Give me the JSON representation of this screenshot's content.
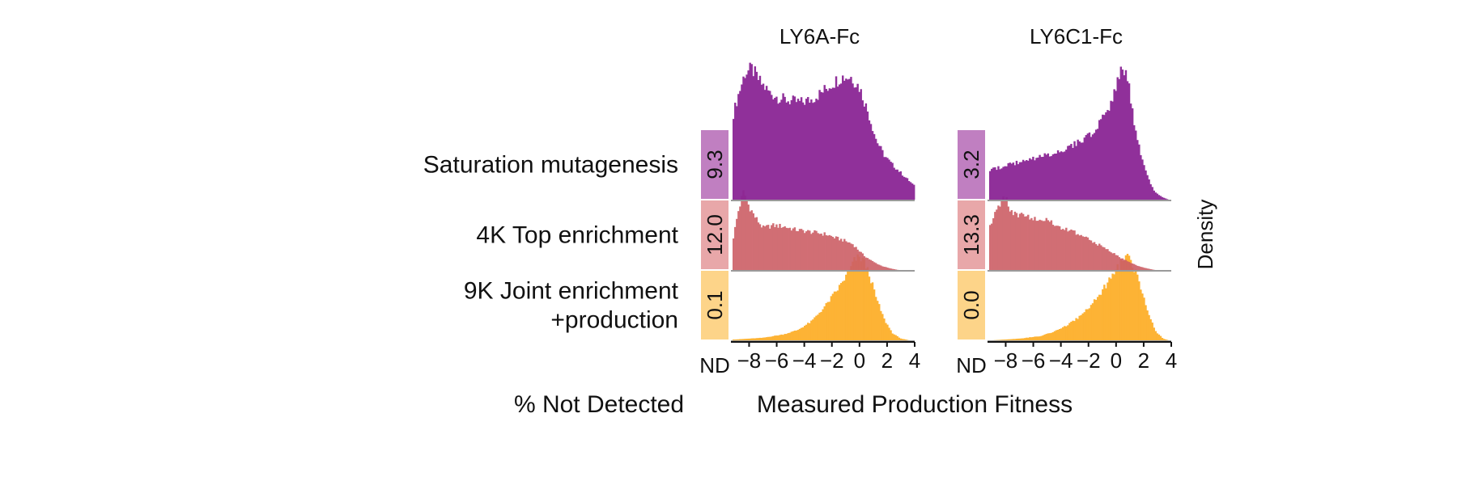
{
  "chart_data": {
    "type": "histogram",
    "x_axis_label": "Measured Production Fitness",
    "y_axis_label": "Density",
    "nd_axis_label": "% Not Detected",
    "nd_tick_label": "ND",
    "x_ticks": [
      -8,
      -6,
      -4,
      -2,
      0,
      2,
      4
    ],
    "x_tick_labels": [
      "−8",
      "−6",
      "−4",
      "−2",
      "0",
      "2",
      "4"
    ],
    "xlim": [
      -9.2,
      4.0
    ],
    "rows": [
      {
        "key": "sat",
        "label_lines": [
          "Saturation mutagenesis"
        ],
        "color": "#8b2595",
        "nd_color": "#c07fc1"
      },
      {
        "key": "top",
        "label_lines": [
          "4K Top enrichment"
        ],
        "color": "#cd5f66",
        "nd_color": "#e8a7a9"
      },
      {
        "key": "joint",
        "label_lines": [
          "9K Joint enrichment",
          "+production"
        ],
        "color": "#fdab20",
        "nd_color": "#fdd489"
      }
    ],
    "panels": [
      {
        "title": "LY6A-Fc",
        "nd_percent": [
          "9.3",
          "12.0",
          "0.1"
        ],
        "series": [
          {
            "row": "sat",
            "peak_density": 1.0,
            "curve": [
              [
                -9.2,
                0.62
              ],
              [
                -8.8,
                0.78
              ],
              [
                -8.3,
                0.95
              ],
              [
                -7.8,
                0.98
              ],
              [
                -7.2,
                0.88
              ],
              [
                -6.5,
                0.8
              ],
              [
                -5.8,
                0.76
              ],
              [
                -5.0,
                0.74
              ],
              [
                -4.2,
                0.73
              ],
              [
                -3.5,
                0.75
              ],
              [
                -2.8,
                0.8
              ],
              [
                -2.0,
                0.87
              ],
              [
                -1.3,
                0.92
              ],
              [
                -0.6,
                0.92
              ],
              [
                0.0,
                0.84
              ],
              [
                0.6,
                0.66
              ],
              [
                1.2,
                0.45
              ],
              [
                1.8,
                0.33
              ],
              [
                2.4,
                0.26
              ],
              [
                3.0,
                0.2
              ],
              [
                3.6,
                0.14
              ],
              [
                4.0,
                0.1
              ]
            ]
          },
          {
            "row": "top",
            "peak_density": 1.0,
            "curve": [
              [
                -9.2,
                0.35
              ],
              [
                -8.8,
                0.72
              ],
              [
                -8.4,
                0.97
              ],
              [
                -8.1,
                0.82
              ],
              [
                -7.6,
                0.66
              ],
              [
                -7.0,
                0.52
              ],
              [
                -6.3,
                0.55
              ],
              [
                -5.5,
                0.54
              ],
              [
                -4.7,
                0.5
              ],
              [
                -3.9,
                0.48
              ],
              [
                -3.1,
                0.46
              ],
              [
                -2.4,
                0.44
              ],
              [
                -1.8,
                0.4
              ],
              [
                -1.2,
                0.37
              ],
              [
                -0.5,
                0.32
              ],
              [
                0.3,
                0.18
              ],
              [
                1.0,
                0.1
              ],
              [
                1.6,
                0.05
              ],
              [
                2.2,
                0.02
              ],
              [
                2.8,
                0.0
              ]
            ]
          },
          {
            "row": "joint",
            "peak_density": 1.0,
            "curve": [
              [
                -9.0,
                0.01
              ],
              [
                -7.0,
                0.03
              ],
              [
                -5.5,
                0.07
              ],
              [
                -4.5,
                0.12
              ],
              [
                -3.5,
                0.22
              ],
              [
                -2.5,
                0.4
              ],
              [
                -1.5,
                0.62
              ],
              [
                -0.8,
                0.8
              ],
              [
                -0.3,
                0.96
              ],
              [
                0.2,
                0.97
              ],
              [
                0.7,
                0.78
              ],
              [
                1.2,
                0.5
              ],
              [
                1.8,
                0.24
              ],
              [
                2.4,
                0.08
              ],
              [
                3.0,
                0.02
              ],
              [
                3.6,
                0.0
              ]
            ]
          }
        ]
      },
      {
        "title": "LY6C1-Fc",
        "nd_percent": [
          "3.2",
          "13.3",
          "0.0"
        ],
        "series": [
          {
            "row": "sat",
            "peak_density": 1.0,
            "curve": [
              [
                -9.2,
                0.22
              ],
              [
                -8.5,
                0.24
              ],
              [
                -7.5,
                0.27
              ],
              [
                -6.5,
                0.29
              ],
              [
                -5.5,
                0.32
              ],
              [
                -4.5,
                0.35
              ],
              [
                -3.5,
                0.39
              ],
              [
                -2.5,
                0.44
              ],
              [
                -1.5,
                0.52
              ],
              [
                -0.8,
                0.63
              ],
              [
                -0.2,
                0.78
              ],
              [
                0.2,
                0.95
              ],
              [
                0.5,
                1.0
              ],
              [
                0.9,
                0.85
              ],
              [
                1.3,
                0.58
              ],
              [
                1.8,
                0.34
              ],
              [
                2.3,
                0.16
              ],
              [
                2.8,
                0.06
              ],
              [
                3.3,
                0.02
              ],
              [
                3.8,
                0.0
              ]
            ]
          },
          {
            "row": "top",
            "peak_density": 1.0,
            "curve": [
              [
                -9.2,
                0.5
              ],
              [
                -8.6,
                0.76
              ],
              [
                -8.1,
                0.92
              ],
              [
                -7.6,
                0.72
              ],
              [
                -7.0,
                0.68
              ],
              [
                -6.3,
                0.66
              ],
              [
                -5.5,
                0.64
              ],
              [
                -4.7,
                0.58
              ],
              [
                -3.9,
                0.52
              ],
              [
                -3.2,
                0.48
              ],
              [
                -2.5,
                0.42
              ],
              [
                -1.8,
                0.36
              ],
              [
                -1.1,
                0.3
              ],
              [
                -0.5,
                0.24
              ],
              [
                0.2,
                0.16
              ],
              [
                0.9,
                0.1
              ],
              [
                1.6,
                0.05
              ],
              [
                2.2,
                0.02
              ],
              [
                2.8,
                0.0
              ]
            ]
          },
          {
            "row": "joint",
            "peak_density": 1.0,
            "curve": [
              [
                -9.0,
                0.0
              ],
              [
                -7.0,
                0.02
              ],
              [
                -5.5,
                0.05
              ],
              [
                -4.5,
                0.1
              ],
              [
                -3.5,
                0.18
              ],
              [
                -2.5,
                0.3
              ],
              [
                -1.5,
                0.48
              ],
              [
                -0.6,
                0.68
              ],
              [
                0.0,
                0.82
              ],
              [
                0.5,
                0.95
              ],
              [
                0.9,
                0.98
              ],
              [
                1.4,
                0.82
              ],
              [
                1.9,
                0.55
              ],
              [
                2.4,
                0.28
              ],
              [
                2.9,
                0.1
              ],
              [
                3.4,
                0.02
              ],
              [
                3.8,
                0.0
              ]
            ]
          }
        ]
      }
    ]
  }
}
